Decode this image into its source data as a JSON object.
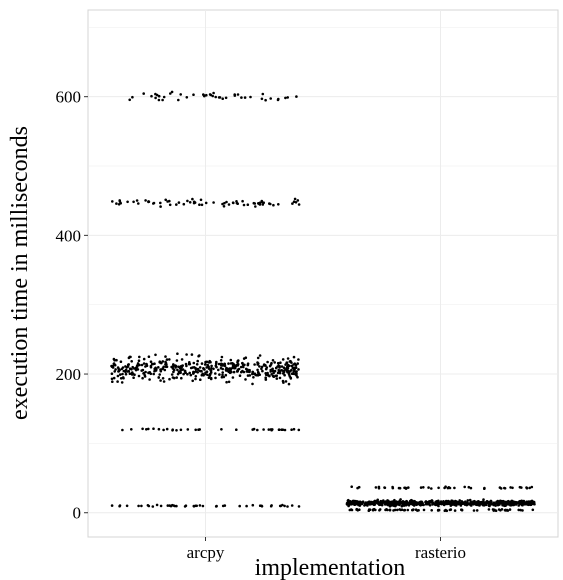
{
  "chart_data": {
    "type": "scatter",
    "title": "",
    "xlabel": "implementation",
    "ylabel": "execution time in milliseconds",
    "categories": [
      "arcpy",
      "rasterio"
    ],
    "yticks": [
      0,
      200,
      400,
      600
    ],
    "ylim": [
      -35,
      725
    ],
    "grid": true,
    "legend": "none",
    "jitter": 0.4,
    "series": [
      {
        "category": "arcpy",
        "clusters": [
          {
            "y": 600,
            "spread": 5,
            "count": 45
          },
          {
            "y": 447,
            "spread": 4,
            "count": 70
          },
          {
            "y": 207,
            "spread": 14,
            "count": 480
          },
          {
            "y": 120,
            "spread": 1,
            "count": 35
          },
          {
            "y": 10,
            "spread": 1,
            "count": 45
          }
        ]
      },
      {
        "category": "rasterio",
        "clusters": [
          {
            "y": 36,
            "spread": 1,
            "count": 45
          },
          {
            "y": 14,
            "spread": 3,
            "count": 650
          },
          {
            "y": 4,
            "spread": 1,
            "count": 70
          }
        ]
      }
    ],
    "colors": {
      "point": "#000000",
      "grid": "#ececec",
      "axis": "#cccccc"
    }
  }
}
